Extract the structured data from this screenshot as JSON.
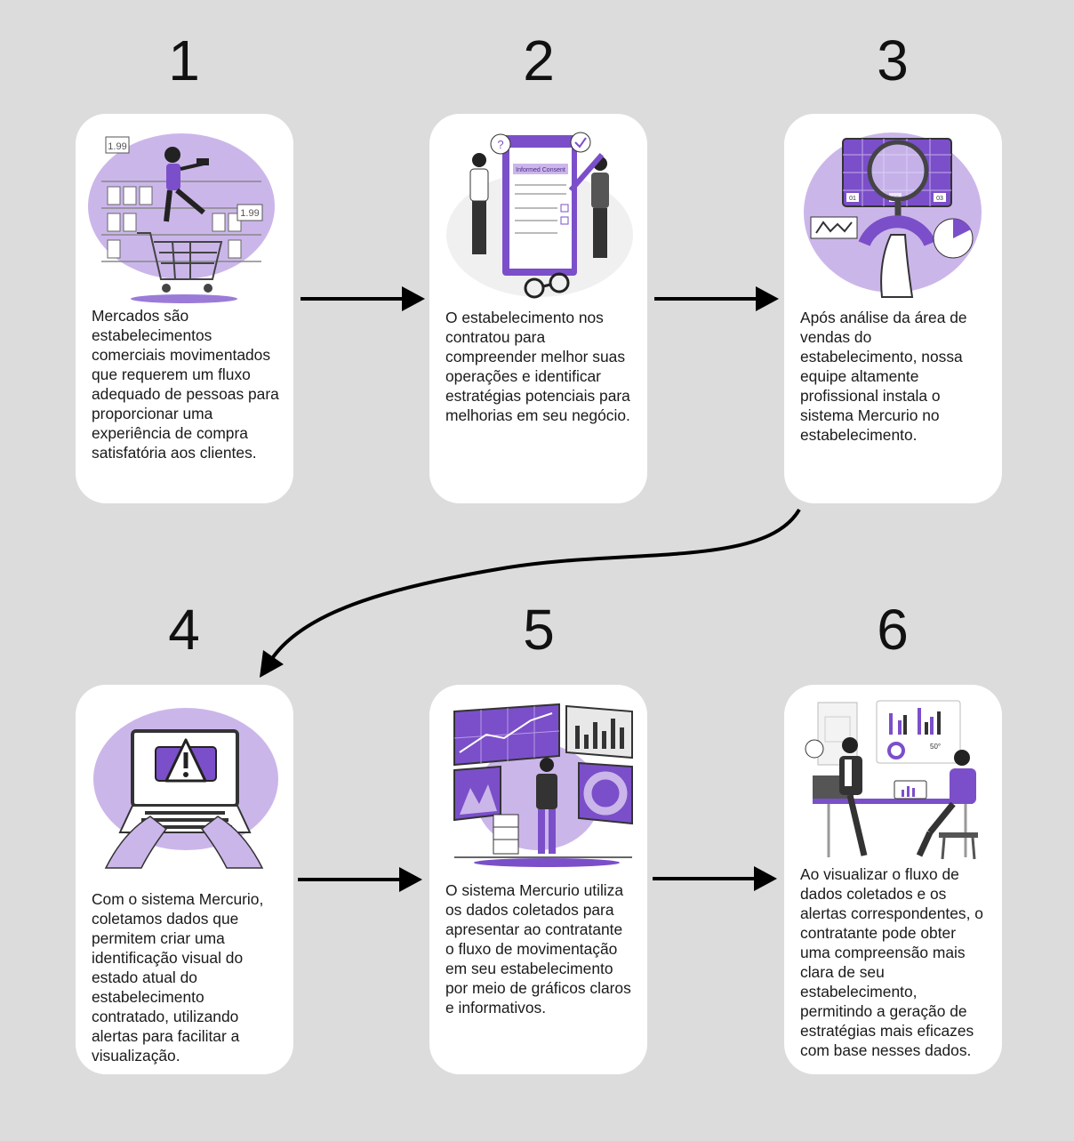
{
  "steps": [
    {
      "number": "1",
      "text": "Mercados são estabelecimentos comerciais movimentados que requerem um fluxo adequado de pessoas para proporcionar uma experiência de compra satisfatória aos clientes.",
      "illustration": "supermarket-shopper-icon"
    },
    {
      "number": "2",
      "text": "O estabelecimento nos contratou para compreender melhor suas operações e identificar estratégias potenciais para melhorias em seu negócio.",
      "illustration": "informed-consent-contract-icon",
      "doc_label": "Informed Consent"
    },
    {
      "number": "3",
      "text": "Após análise da área de vendas do estabelecimento, nossa equipe altamente profissional instala o sistema Mercurio no estabelecimento.",
      "illustration": "magnifier-analysis-icon",
      "codes": [
        "01",
        "02",
        "03"
      ]
    },
    {
      "number": "4",
      "text": "Com o sistema Mercurio, coletamos dados que permitem criar uma identificação visual do estado atual do estabelecimento contratado, utilizando alertas para facilitar a visualização.",
      "illustration": "laptop-alert-icon"
    },
    {
      "number": "5",
      "text": "O sistema Mercurio utiliza os dados coletados para apresentar ao contratante o fluxo de movimentação em seu estabelecimento por meio de gráficos claros e informativos.",
      "illustration": "data-dashboard-presenter-icon"
    },
    {
      "number": "6",
      "text": "Ao visualizar o fluxo de dados coletados e os alertas correspondentes, o contratante pode obter uma compreensão mais clara de seu estabelecimento, permitindo a geração de estratégias mais eficazes com base nesses dados.",
      "illustration": "business-meeting-icon",
      "badge": "50°"
    }
  ],
  "price_tags": [
    "1.99",
    "1.99"
  ],
  "colors": {
    "background": "#dcdcdc",
    "card": "#ffffff",
    "accent": "#7b4fc9",
    "accent_light": "#cbb6ea",
    "arrow": "#000000"
  }
}
